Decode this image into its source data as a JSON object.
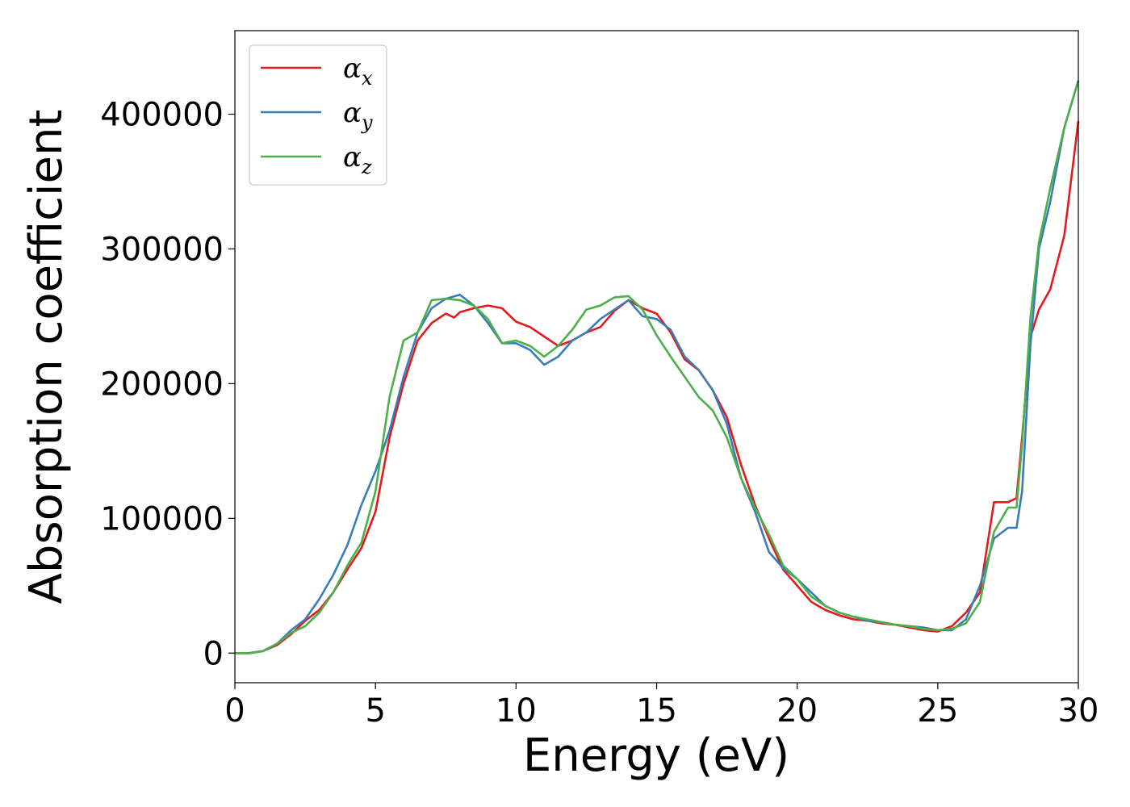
{
  "chart_data": {
    "type": "line",
    "xlabel": "Energy (eV)",
    "ylabel": "Absorption coefficient",
    "xlim": [
      0,
      30
    ],
    "ylim": [
      -22000,
      462000
    ],
    "xticks": [
      "0",
      "5",
      "10",
      "15",
      "20",
      "25",
      "30"
    ],
    "yticks": [
      "0",
      "100000",
      "200000",
      "300000",
      "400000"
    ],
    "grid": false,
    "legend_position": "upper-left",
    "series": [
      {
        "name": "α",
        "subscript": "x",
        "color": "#e41a1c",
        "x": [
          0,
          0.5,
          1.0,
          1.5,
          2.0,
          2.5,
          3.0,
          3.5,
          4.0,
          4.5,
          5.0,
          5.5,
          6.0,
          6.5,
          7.0,
          7.5,
          7.8,
          8.0,
          8.5,
          9.0,
          9.5,
          10.0,
          10.5,
          11.0,
          11.5,
          12.0,
          12.5,
          13.0,
          13.5,
          14.0,
          14.5,
          15.0,
          15.5,
          16.0,
          16.5,
          17.0,
          17.5,
          18.0,
          18.5,
          19.0,
          19.5,
          20.0,
          20.5,
          21.0,
          21.5,
          22.0,
          22.5,
          23.0,
          23.5,
          24.0,
          24.5,
          25.0,
          25.5,
          26.0,
          26.5,
          27.0,
          27.5,
          27.8,
          28.0,
          28.3,
          28.6,
          29.0,
          29.5,
          30.0
        ],
        "y": [
          0,
          0,
          1500,
          6000,
          14000,
          24000,
          32000,
          45000,
          62000,
          78000,
          105000,
          160000,
          200000,
          232000,
          245000,
          252000,
          249000,
          253000,
          256000,
          258000,
          256000,
          246000,
          242000,
          235000,
          228000,
          232000,
          238000,
          242000,
          254000,
          262000,
          256000,
          252000,
          238000,
          218000,
          210000,
          195000,
          175000,
          140000,
          110000,
          85000,
          62000,
          50000,
          38000,
          32000,
          28000,
          25000,
          24000,
          22000,
          21000,
          19000,
          17000,
          16000,
          20000,
          30000,
          45000,
          112000,
          112000,
          115000,
          160000,
          235000,
          255000,
          270000,
          310000,
          395000
        ]
      },
      {
        "name": "α",
        "subscript": "y",
        "color": "#377eb8",
        "x": [
          0,
          0.5,
          1.0,
          1.5,
          2.0,
          2.5,
          3.0,
          3.5,
          4.0,
          4.5,
          5.0,
          5.5,
          6.0,
          6.5,
          7.0,
          7.5,
          8.0,
          8.5,
          9.0,
          9.5,
          10.0,
          10.5,
          11.0,
          11.5,
          12.0,
          12.5,
          13.0,
          13.5,
          14.0,
          14.5,
          15.0,
          15.5,
          16.0,
          16.5,
          17.0,
          17.5,
          18.0,
          18.5,
          19.0,
          19.5,
          20.0,
          20.5,
          21.0,
          21.5,
          22.0,
          22.5,
          23.0,
          23.5,
          24.0,
          24.5,
          25.0,
          25.5,
          26.0,
          26.5,
          27.0,
          27.5,
          27.8,
          28.0,
          28.3,
          28.6,
          29.0,
          29.5,
          30.0
        ],
        "y": [
          0,
          0,
          1500,
          7000,
          17000,
          25000,
          40000,
          58000,
          80000,
          110000,
          135000,
          165000,
          205000,
          238000,
          256000,
          263000,
          266000,
          258000,
          245000,
          230000,
          230000,
          225000,
          214000,
          220000,
          232000,
          238000,
          248000,
          255000,
          262000,
          250000,
          248000,
          240000,
          220000,
          210000,
          195000,
          170000,
          130000,
          105000,
          75000,
          63000,
          55000,
          45000,
          35000,
          30000,
          27000,
          24000,
          23000,
          21000,
          20000,
          19000,
          17000,
          17000,
          25000,
          50000,
          85000,
          93000,
          93000,
          120000,
          230000,
          300000,
          335000,
          390000,
          425000
        ]
      },
      {
        "name": "α",
        "subscript": "z",
        "color": "#4daf4a",
        "x": [
          0,
          0.5,
          1.0,
          1.5,
          2.0,
          2.5,
          3.0,
          3.5,
          4.0,
          4.5,
          5.0,
          5.5,
          6.0,
          6.5,
          7.0,
          7.5,
          8.0,
          8.5,
          9.0,
          9.5,
          10.0,
          10.5,
          11.0,
          11.5,
          12.0,
          12.5,
          13.0,
          13.5,
          14.0,
          14.5,
          15.0,
          15.5,
          16.0,
          16.5,
          17.0,
          17.5,
          18.0,
          18.5,
          19.0,
          19.5,
          20.0,
          20.5,
          21.0,
          21.5,
          22.0,
          22.5,
          23.0,
          23.5,
          24.0,
          24.5,
          25.0,
          25.5,
          26.0,
          26.5,
          27.0,
          27.5,
          27.8,
          28.0,
          28.3,
          28.6,
          29.0,
          29.5,
          30.0
        ],
        "y": [
          0,
          0,
          1500,
          7000,
          15000,
          20000,
          30000,
          45000,
          65000,
          82000,
          120000,
          190000,
          232000,
          238000,
          262000,
          263000,
          262000,
          258000,
          248000,
          230000,
          232000,
          228000,
          220000,
          228000,
          240000,
          255000,
          258000,
          264000,
          265000,
          255000,
          236000,
          220000,
          205000,
          190000,
          180000,
          160000,
          130000,
          108000,
          88000,
          65000,
          55000,
          42000,
          35000,
          30000,
          27000,
          25000,
          23000,
          21000,
          20000,
          18000,
          17000,
          18000,
          22000,
          38000,
          90000,
          108000,
          108000,
          155000,
          250000,
          305000,
          345000,
          390000,
          425000
        ]
      }
    ]
  }
}
